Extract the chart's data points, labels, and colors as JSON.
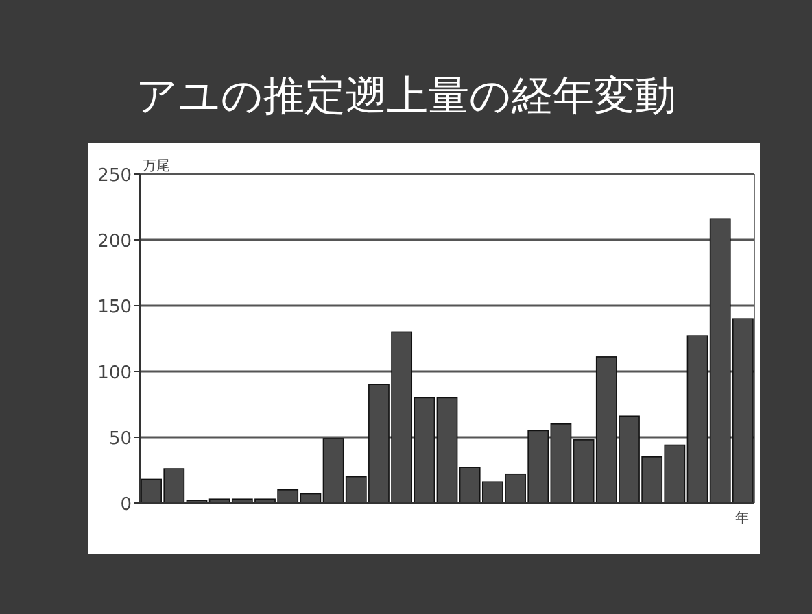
{
  "chart_data": {
    "type": "bar",
    "title": "アユの推定遡上量の経年変動",
    "ylabel": "万尾",
    "xlabel": "年",
    "categories": [
      null,
      null,
      null,
      null,
      null,
      null,
      null,
      null,
      null,
      null,
      null,
      null,
      null,
      null,
      null,
      null,
      null,
      null,
      null,
      null,
      null,
      null,
      null,
      null,
      null,
      null,
      null
    ],
    "values": [
      18,
      26,
      2,
      3,
      3,
      3,
      10,
      7,
      49,
      20,
      90,
      130,
      80,
      80,
      27,
      16,
      22,
      55,
      60,
      48,
      111,
      66,
      35,
      44,
      127,
      216,
      140
    ],
    "color": "#4a4a4a",
    "ylim": [
      0,
      250
    ],
    "yticks": [
      0,
      50,
      100,
      150,
      200,
      250
    ],
    "grid": "y"
  }
}
